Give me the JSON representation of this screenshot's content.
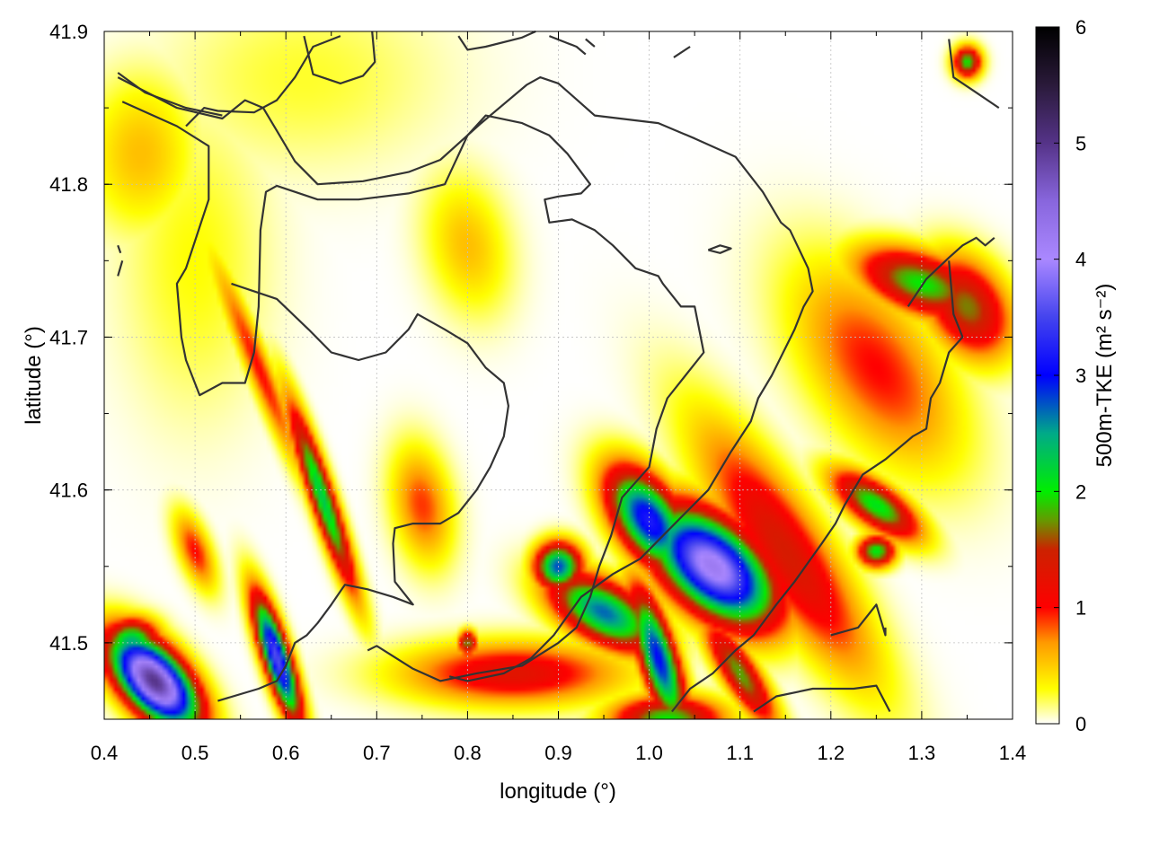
{
  "chart_data": {
    "type": "heatmap",
    "xlabel": "longitude (°)",
    "ylabel": "latitude (°)",
    "colorbar_label": "500m-TKE (m² s⁻²)",
    "xlim": [
      0.4,
      1.4
    ],
    "ylim": [
      41.45,
      41.9
    ],
    "x_ticks": [
      "0.4",
      "0.5",
      "0.6",
      "0.7",
      "0.8",
      "0.9",
      "1.0",
      "1.1",
      "1.2",
      "1.3",
      "1.4"
    ],
    "x_tick_values": [
      0.4,
      0.5,
      0.6,
      0.7,
      0.8,
      0.9,
      1.0,
      1.1,
      1.2,
      1.3,
      1.4
    ],
    "y_ticks": [
      "41.5",
      "41.6",
      "41.7",
      "41.8",
      "41.9"
    ],
    "y_tick_values": [
      41.5,
      41.6,
      41.7,
      41.8,
      41.9
    ],
    "colorbar_range": [
      0,
      6
    ],
    "colorbar_ticks": [
      "0",
      "1",
      "2",
      "3",
      "4",
      "5",
      "6"
    ],
    "colorbar_tick_values": [
      0,
      1,
      2,
      3,
      4,
      5,
      6
    ],
    "grid": true,
    "colormap": [
      [
        0.0,
        "#ffffff"
      ],
      [
        0.3,
        "#ffff00"
      ],
      [
        0.7,
        "#ff9900"
      ],
      [
        1.0,
        "#ff0000"
      ],
      [
        1.5,
        "#cc2200"
      ],
      [
        1.75,
        "#669900"
      ],
      [
        2.0,
        "#00ee00"
      ],
      [
        2.5,
        "#00aa88"
      ],
      [
        3.0,
        "#0000ff"
      ],
      [
        3.5,
        "#4444ee"
      ],
      [
        4.0,
        "#aa88ff"
      ],
      [
        4.5,
        "#8866dd"
      ],
      [
        5.0,
        "#553388"
      ],
      [
        5.5,
        "#2a1a3a"
      ],
      [
        6.0,
        "#000000"
      ]
    ],
    "tke_blobs": [
      {
        "lon": 0.455,
        "lat": 41.475,
        "sx": 0.05,
        "sy": 0.022,
        "angle": -25,
        "value": 5.0
      },
      {
        "lon": 0.59,
        "lat": 41.49,
        "sx": 0.045,
        "sy": 0.013,
        "angle": -60,
        "value": 3.6
      },
      {
        "lon": 0.43,
        "lat": 41.5,
        "sx": 0.03,
        "sy": 0.015,
        "angle": 0,
        "value": 2.5
      },
      {
        "lon": 0.64,
        "lat": 41.595,
        "sx": 0.07,
        "sy": 0.012,
        "angle": -60,
        "value": 2.3
      },
      {
        "lon": 0.57,
        "lat": 41.68,
        "sx": 0.09,
        "sy": 0.012,
        "angle": -55,
        "value": 1.0
      },
      {
        "lon": 0.5,
        "lat": 41.56,
        "sx": 0.03,
        "sy": 0.015,
        "angle": -50,
        "value": 1.0
      },
      {
        "lon": 1.07,
        "lat": 41.55,
        "sx": 0.07,
        "sy": 0.03,
        "angle": -20,
        "value": 4.2
      },
      {
        "lon": 1.0,
        "lat": 41.58,
        "sx": 0.05,
        "sy": 0.025,
        "angle": -30,
        "value": 3.2
      },
      {
        "lon": 0.95,
        "lat": 41.52,
        "sx": 0.06,
        "sy": 0.02,
        "angle": -15,
        "value": 2.7
      },
      {
        "lon": 0.9,
        "lat": 41.55,
        "sx": 0.025,
        "sy": 0.015,
        "angle": 0,
        "value": 2.8
      },
      {
        "lon": 1.01,
        "lat": 41.49,
        "sx": 0.05,
        "sy": 0.018,
        "angle": -60,
        "value": 3.0
      },
      {
        "lon": 0.85,
        "lat": 41.48,
        "sx": 0.12,
        "sy": 0.02,
        "angle": 0,
        "value": 1.3
      },
      {
        "lon": 1.15,
        "lat": 41.56,
        "sx": 0.12,
        "sy": 0.035,
        "angle": -40,
        "value": 1.4
      },
      {
        "lon": 1.25,
        "lat": 41.59,
        "sx": 0.05,
        "sy": 0.015,
        "angle": -20,
        "value": 2.1
      },
      {
        "lon": 1.25,
        "lat": 41.56,
        "sx": 0.02,
        "sy": 0.01,
        "angle": 0,
        "value": 2.1
      },
      {
        "lon": 1.3,
        "lat": 41.735,
        "sx": 0.07,
        "sy": 0.02,
        "angle": -10,
        "value": 2.0
      },
      {
        "lon": 1.35,
        "lat": 41.72,
        "sx": 0.05,
        "sy": 0.03,
        "angle": -20,
        "value": 1.7
      },
      {
        "lon": 1.25,
        "lat": 41.68,
        "sx": 0.1,
        "sy": 0.05,
        "angle": -30,
        "value": 1.0
      },
      {
        "lon": 1.35,
        "lat": 41.88,
        "sx": 0.015,
        "sy": 0.01,
        "angle": 0,
        "value": 2.0
      },
      {
        "lon": 0.44,
        "lat": 41.82,
        "sx": 0.06,
        "sy": 0.05,
        "angle": 0,
        "value": 0.55
      },
      {
        "lon": 0.8,
        "lat": 41.76,
        "sx": 0.05,
        "sy": 0.04,
        "angle": -40,
        "value": 0.55
      },
      {
        "lon": 0.75,
        "lat": 41.59,
        "sx": 0.04,
        "sy": 0.03,
        "angle": -60,
        "value": 0.9
      },
      {
        "lon": 0.8,
        "lat": 41.5,
        "sx": 0.01,
        "sy": 0.008,
        "angle": 0,
        "value": 1.8
      },
      {
        "lon": 0.62,
        "lat": 41.87,
        "sx": 0.15,
        "sy": 0.06,
        "angle": 0,
        "value": 0.25
      },
      {
        "lon": 0.5,
        "lat": 41.75,
        "sx": 0.08,
        "sy": 0.1,
        "angle": 0,
        "value": 0.3
      },
      {
        "lon": 1.02,
        "lat": 41.45,
        "sx": 0.06,
        "sy": 0.015,
        "angle": 0,
        "value": 2.0
      },
      {
        "lon": 1.1,
        "lat": 41.48,
        "sx": 0.05,
        "sy": 0.015,
        "angle": -40,
        "value": 1.8
      }
    ],
    "contours": [
      [
        [
          0.42,
          41.854
        ],
        [
          0.48,
          41.838
        ],
        [
          0.515,
          41.825
        ],
        [
          0.515,
          41.79
        ],
        [
          0.49,
          41.745
        ],
        [
          0.48,
          41.735
        ],
        [
          0.485,
          41.7
        ],
        [
          0.49,
          41.685
        ],
        [
          0.505,
          41.662
        ],
        [
          0.53,
          41.67
        ],
        [
          0.555,
          41.67
        ],
        [
          0.565,
          41.69
        ],
        [
          0.57,
          41.72
        ],
        [
          0.572,
          41.77
        ],
        [
          0.578,
          41.795
        ],
        [
          0.59,
          41.799
        ],
        [
          0.61,
          41.795
        ],
        [
          0.635,
          41.79
        ],
        [
          0.68,
          41.79
        ],
        [
          0.735,
          41.794
        ],
        [
          0.775,
          41.8
        ],
        [
          0.8,
          41.832
        ],
        [
          0.82,
          41.845
        ],
        [
          0.86,
          41.84
        ],
        [
          0.89,
          41.832
        ],
        [
          0.91,
          41.82
        ],
        [
          0.935,
          41.8
        ],
        [
          0.925,
          41.794
        ],
        [
          0.9,
          41.792
        ],
        [
          0.885,
          41.79
        ],
        [
          0.89,
          41.775
        ],
        [
          0.915,
          41.777
        ],
        [
          0.94,
          41.77
        ],
        [
          0.96,
          41.76
        ],
        [
          0.985,
          41.745
        ],
        [
          1.01,
          41.74
        ],
        [
          1.015,
          41.735
        ],
        [
          1.035,
          41.72
        ],
        [
          1.05,
          41.72
        ],
        [
          1.06,
          41.69
        ],
        [
          1.02,
          41.66
        ],
        [
          1.008,
          41.64
        ],
        [
          1.0,
          41.615
        ],
        [
          0.985,
          41.605
        ],
        [
          0.97,
          41.595
        ],
        [
          0.958,
          41.57
        ],
        [
          0.945,
          41.55
        ],
        [
          0.935,
          41.53
        ],
        [
          0.92,
          41.51
        ],
        [
          0.9,
          41.5
        ],
        [
          0.86,
          41.485
        ],
        [
          0.81,
          41.48
        ],
        [
          0.77,
          41.475
        ],
        [
          0.74,
          41.483
        ],
        [
          0.7,
          41.498
        ],
        [
          0.69,
          41.495
        ]
      ],
      [
        [
          0.415,
          41.87
        ],
        [
          0.48,
          41.85
        ],
        [
          0.53,
          41.843
        ],
        [
          0.555,
          41.855
        ],
        [
          0.575,
          41.85
        ],
        [
          0.59,
          41.835
        ],
        [
          0.61,
          41.815
        ],
        [
          0.635,
          41.8
        ],
        [
          0.685,
          41.802
        ],
        [
          0.735,
          41.808
        ],
        [
          0.77,
          41.816
        ],
        [
          0.815,
          41.84
        ],
        [
          0.865,
          41.865
        ],
        [
          0.88,
          41.87
        ],
        [
          0.9,
          41.866
        ],
        [
          0.94,
          41.845
        ],
        [
          1.01,
          41.84
        ],
        [
          1.05,
          41.83
        ],
        [
          1.095,
          41.818
        ],
        [
          1.125,
          41.795
        ],
        [
          1.145,
          41.775
        ],
        [
          1.155,
          41.77
        ],
        [
          1.175,
          41.745
        ],
        [
          1.18,
          41.73
        ],
        [
          1.17,
          41.72
        ],
        [
          1.16,
          41.705
        ],
        [
          1.135,
          41.675
        ],
        [
          1.12,
          41.66
        ],
        [
          1.112,
          41.645
        ],
        [
          1.09,
          41.625
        ],
        [
          1.065,
          41.6
        ],
        [
          1.04,
          41.585
        ],
        [
          1.015,
          41.57
        ],
        [
          0.99,
          41.555
        ],
        [
          0.96,
          41.545
        ],
        [
          0.925,
          41.53
        ],
        [
          0.895,
          41.505
        ],
        [
          0.87,
          41.49
        ],
        [
          0.84,
          41.48
        ],
        [
          0.8,
          41.475
        ],
        [
          0.78,
          41.478
        ]
      ],
      [
        [
          0.54,
          41.735
        ],
        [
          0.59,
          41.725
        ],
        [
          0.625,
          41.705
        ],
        [
          0.65,
          41.69
        ],
        [
          0.68,
          41.685
        ],
        [
          0.71,
          41.69
        ],
        [
          0.735,
          41.705
        ],
        [
          0.745,
          41.715
        ],
        [
          0.775,
          41.705
        ],
        [
          0.8,
          41.696
        ],
        [
          0.82,
          41.68
        ],
        [
          0.84,
          41.67
        ],
        [
          0.845,
          41.655
        ],
        [
          0.84,
          41.635
        ],
        [
          0.825,
          41.615
        ],
        [
          0.81,
          41.6
        ],
        [
          0.79,
          41.585
        ],
        [
          0.77,
          41.578
        ],
        [
          0.74,
          41.578
        ],
        [
          0.72,
          41.575
        ],
        [
          0.718,
          41.565
        ],
        [
          0.72,
          41.54
        ],
        [
          0.74,
          41.525
        ],
        [
          0.718,
          41.53
        ],
        [
          0.69,
          41.535
        ],
        [
          0.665,
          41.538
        ],
        [
          0.65,
          41.525
        ],
        [
          0.635,
          41.513
        ],
        [
          0.623,
          41.505
        ],
        [
          0.61,
          41.5
        ],
        [
          0.6,
          41.485
        ],
        [
          0.59,
          41.475
        ],
        [
          0.57,
          41.47
        ],
        [
          0.525,
          41.462
        ]
      ],
      [
        [
          0.66,
          41.897
        ],
        [
          0.63,
          41.89
        ],
        [
          0.61,
          41.87
        ],
        [
          0.59,
          41.855
        ],
        [
          0.565,
          41.847
        ],
        [
          0.525,
          41.848
        ],
        [
          0.51,
          41.85
        ],
        [
          0.49,
          41.838
        ]
      ],
      [
        [
          0.415,
          41.873
        ],
        [
          0.445,
          41.86
        ],
        [
          0.49,
          41.85
        ],
        [
          0.53,
          41.845
        ]
      ],
      [
        [
          0.62,
          41.897
        ],
        [
          0.63,
          41.872
        ],
        [
          0.66,
          41.866
        ],
        [
          0.685,
          41.871
        ],
        [
          0.698,
          41.88
        ],
        [
          0.695,
          41.9
        ]
      ],
      [
        [
          0.79,
          41.897
        ],
        [
          0.8,
          41.888
        ],
        [
          0.82,
          41.89
        ],
        [
          0.86,
          41.896
        ],
        [
          0.875,
          41.9
        ]
      ],
      [
        [
          0.89,
          41.897
        ],
        [
          0.92,
          41.89
        ],
        [
          0.93,
          41.885
        ]
      ],
      [
        [
          0.94,
          41.89
        ],
        [
          0.93,
          41.895
        ]
      ],
      [
        [
          1.027,
          41.883
        ],
        [
          1.045,
          41.89
        ]
      ],
      [
        [
          1.065,
          41.757
        ],
        [
          1.078,
          41.76
        ],
        [
          1.09,
          41.758
        ],
        [
          1.078,
          41.755
        ],
        [
          1.065,
          41.757
        ]
      ],
      [
        [
          1.33,
          41.895
        ],
        [
          1.335,
          41.87
        ],
        [
          1.36,
          41.86
        ],
        [
          1.385,
          41.85
        ]
      ],
      [
        [
          0.415,
          41.76
        ],
        [
          0.418,
          41.755
        ]
      ],
      [
        [
          0.415,
          41.74
        ],
        [
          0.42,
          41.75
        ]
      ],
      [
        [
          1.285,
          41.72
        ],
        [
          1.305,
          41.738
        ],
        [
          1.33,
          41.752
        ],
        [
          1.345,
          41.76
        ],
        [
          1.36,
          41.765
        ],
        [
          1.37,
          41.76
        ],
        [
          1.38,
          41.765
        ]
      ],
      [
        [
          1.33,
          41.75
        ],
        [
          1.335,
          41.715
        ],
        [
          1.345,
          41.7
        ],
        [
          1.33,
          41.69
        ],
        [
          1.32,
          41.67
        ],
        [
          1.31,
          41.66
        ],
        [
          1.305,
          41.64
        ],
        [
          1.29,
          41.635
        ],
        [
          1.26,
          41.62
        ],
        [
          1.235,
          41.61
        ],
        [
          1.225,
          41.6
        ],
        [
          1.215,
          41.59
        ],
        [
          1.205,
          41.578
        ],
        [
          1.19,
          41.565
        ],
        [
          1.172,
          41.55
        ],
        [
          1.16,
          41.54
        ],
        [
          1.14,
          41.525
        ],
        [
          1.13,
          41.517
        ],
        [
          1.115,
          41.505
        ],
        [
          1.095,
          41.495
        ],
        [
          1.07,
          41.48
        ],
        [
          1.045,
          41.47
        ],
        [
          1.025,
          41.455
        ]
      ],
      [
        [
          1.115,
          41.455
        ],
        [
          1.14,
          41.465
        ],
        [
          1.18,
          41.47
        ],
        [
          1.225,
          41.47
        ],
        [
          1.25,
          41.472
        ],
        [
          1.265,
          41.455
        ]
      ],
      [
        [
          1.2,
          41.505
        ],
        [
          1.23,
          41.51
        ],
        [
          1.25,
          41.525
        ],
        [
          1.26,
          41.505
        ],
        [
          1.26,
          41.51
        ]
      ]
    ]
  }
}
